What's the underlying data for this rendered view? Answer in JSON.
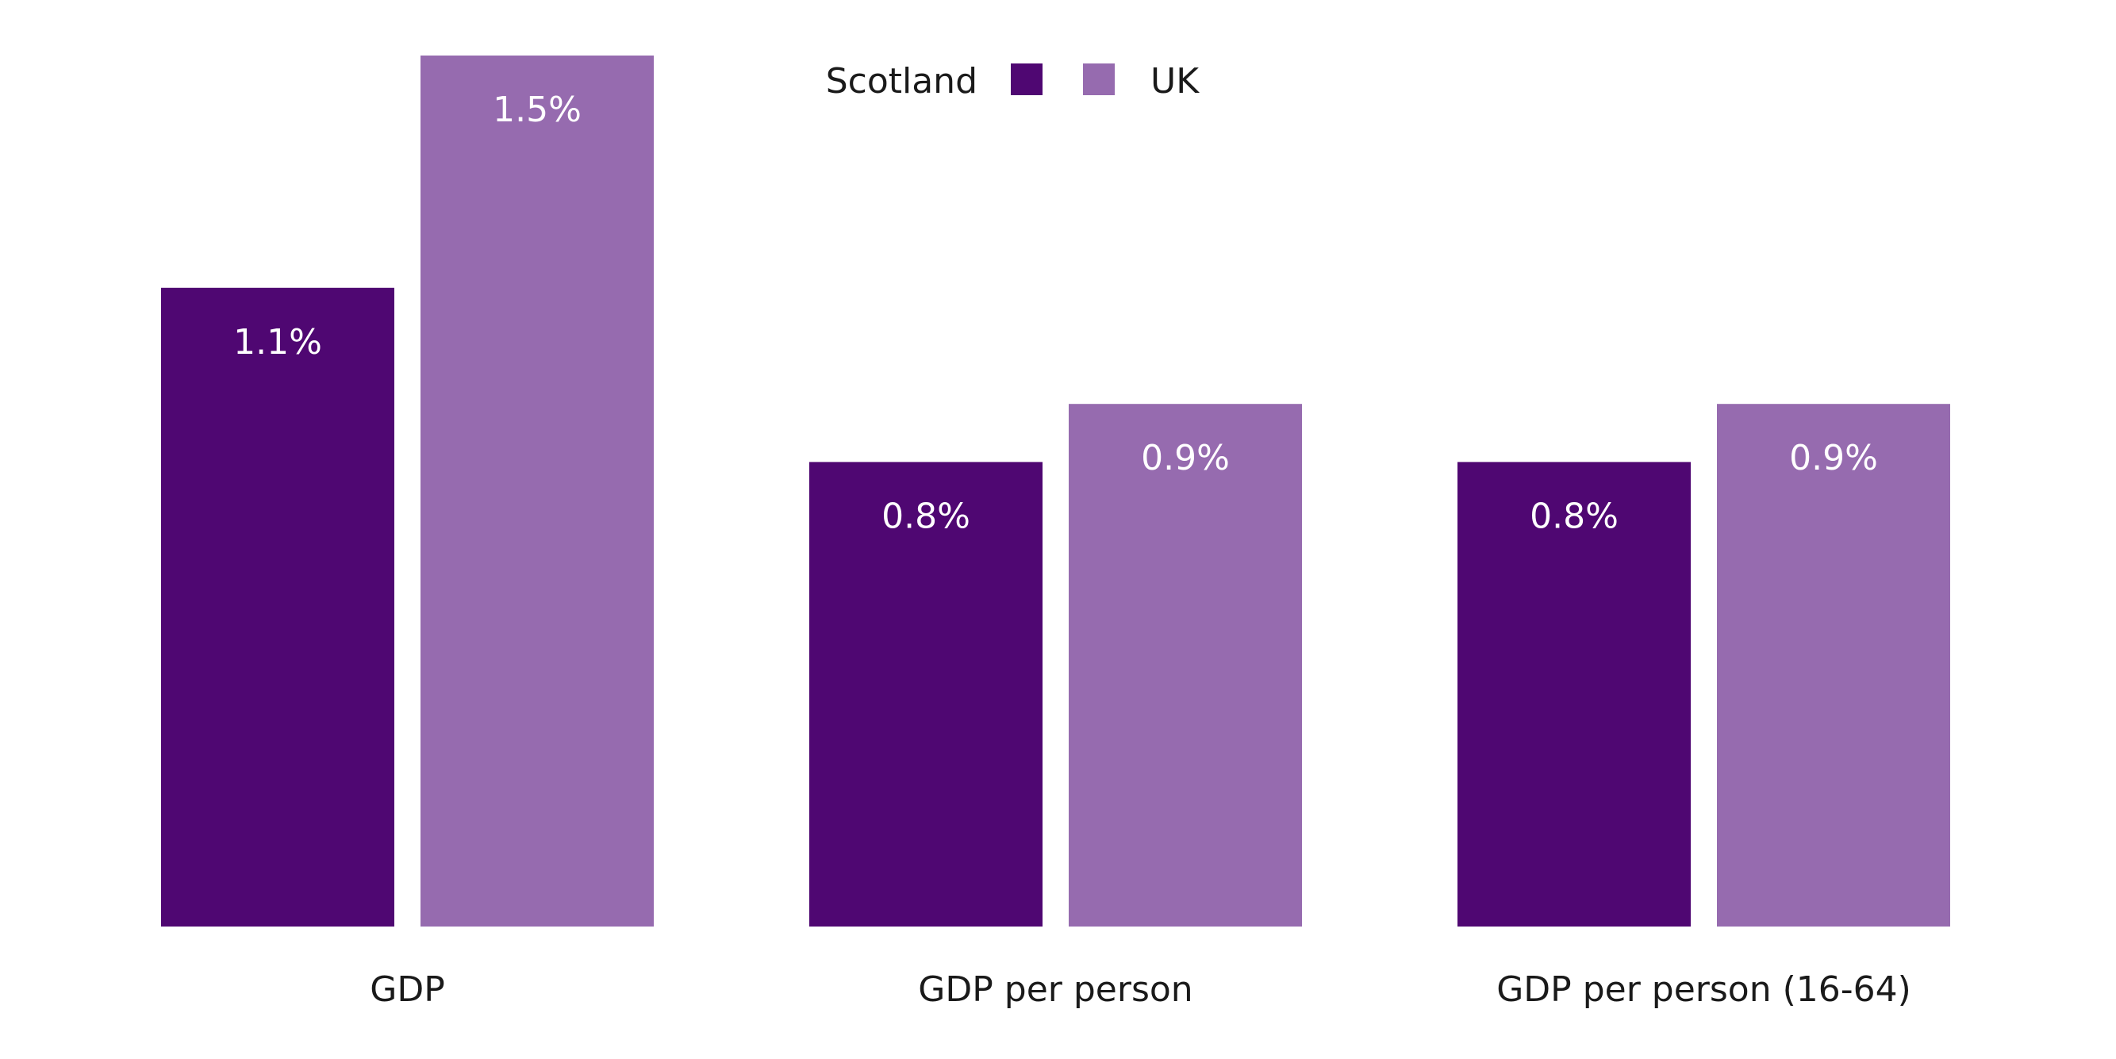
{
  "chart_data": {
    "type": "bar",
    "categories": [
      "GDP",
      "GDP per person",
      "GDP per person (16-64)"
    ],
    "series": [
      {
        "name": "Scotland",
        "color": "#4f0772",
        "values": [
          1.1,
          0.8,
          0.8
        ],
        "labels": [
          "1.1%",
          "0.8%",
          "0.8%"
        ]
      },
      {
        "name": "UK",
        "color": "#966baf",
        "values": [
          1.5,
          0.9,
          0.9
        ],
        "labels": [
          "1.5%",
          "0.9%",
          "0.9%"
        ]
      }
    ],
    "legend": {
      "position": "top-center"
    },
    "ylim": [
      0,
      1.5
    ],
    "grid": false,
    "title": "",
    "xlabel": "",
    "ylabel": ""
  }
}
